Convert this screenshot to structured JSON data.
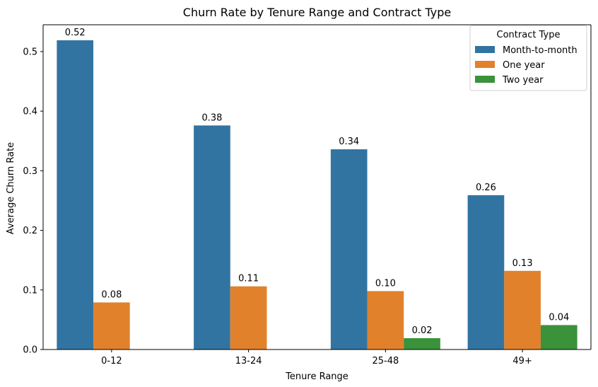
{
  "chart_data": {
    "type": "bar",
    "title": "Churn Rate by Tenure Range and Contract Type",
    "xlabel": "Tenure Range",
    "ylabel": "Average Churn Rate",
    "categories": [
      "0-12",
      "13-24",
      "25-48",
      "49+"
    ],
    "ylim": [
      0,
      0.545
    ],
    "yticks": [
      0.0,
      0.1,
      0.2,
      0.3,
      0.4,
      0.5
    ],
    "ytick_labels": [
      "0.0",
      "0.1",
      "0.2",
      "0.3",
      "0.4",
      "0.5"
    ],
    "grid": false,
    "legend": {
      "title": "Contract Type",
      "placement": "top-right"
    },
    "series": [
      {
        "name": "Month-to-month",
        "color": "#3274a1",
        "values": [
          0.519,
          0.376,
          0.336,
          0.259
        ],
        "labels": [
          "0.52",
          "0.38",
          "0.34",
          "0.26"
        ]
      },
      {
        "name": "One year",
        "color": "#e1812c",
        "values": [
          0.079,
          0.106,
          0.098,
          0.132
        ],
        "labels": [
          "0.08",
          "0.11",
          "0.10",
          "0.13"
        ]
      },
      {
        "name": "Two year",
        "color": "#3a923a",
        "values": [
          null,
          null,
          0.019,
          0.041
        ],
        "labels": [
          "",
          "",
          "0.02",
          "0.04"
        ]
      }
    ]
  }
}
